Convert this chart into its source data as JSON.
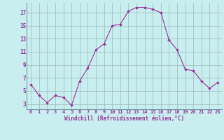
{
  "x": [
    0,
    1,
    2,
    3,
    4,
    5,
    6,
    7,
    8,
    9,
    10,
    11,
    12,
    13,
    14,
    15,
    16,
    17,
    18,
    19,
    20,
    21,
    22,
    23
  ],
  "y": [
    6.0,
    4.3,
    3.2,
    4.3,
    4.0,
    2.8,
    6.5,
    8.5,
    11.3,
    12.2,
    15.0,
    15.2,
    17.2,
    17.8,
    17.8,
    17.5,
    17.0,
    12.8,
    11.3,
    8.3,
    8.1,
    6.5,
    5.4,
    6.3
  ],
  "line_color": "#993399",
  "marker_color": "#993399",
  "bg_color": "#c8eef0",
  "grid_color": "#9ab8b8",
  "xlabel": "Windchill (Refroidissement éolien,°C)",
  "xlabel_color": "#993399",
  "ylabel_ticks": [
    3,
    5,
    7,
    9,
    11,
    13,
    15,
    17
  ],
  "xtick_labels": [
    "0",
    "1",
    "2",
    "3",
    "4",
    "5",
    "6",
    "7",
    "8",
    "9",
    "10",
    "11",
    "12",
    "13",
    "14",
    "15",
    "16",
    "17",
    "18",
    "19",
    "20",
    "21",
    "22",
    "23"
  ],
  "ylim": [
    2.2,
    18.5
  ],
  "xlim": [
    -0.5,
    23.5
  ],
  "tick_color": "#993399",
  "font_color": "#993399",
  "spine_color": "#7799aa"
}
